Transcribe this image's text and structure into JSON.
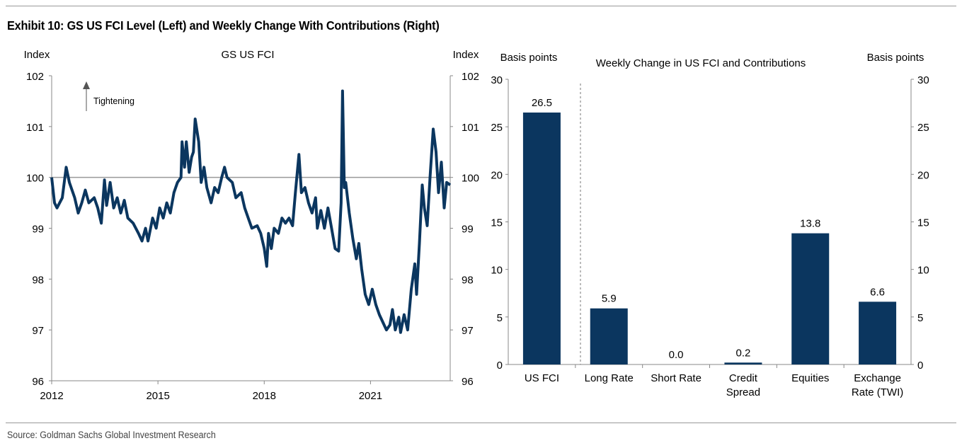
{
  "title": "Exhibit 10: GS US FCI Level (Left) and Weekly Change With Contributions (Right)",
  "source": "Source: Goldman Sachs Global Investment Research",
  "colors": {
    "series": "#0b365f",
    "axis": "#888888",
    "refline": "#999999"
  },
  "chart_data": [
    {
      "type": "line",
      "title": "GS US FCI",
      "ylabel_left": "Index",
      "ylabel_right": "Index",
      "annotation": "Tightening",
      "xlim": [
        2012,
        2023.25
      ],
      "ylim": [
        96,
        102
      ],
      "x_ticks": [
        "2012",
        "2015",
        "2018",
        "2021"
      ],
      "x_tick_values": [
        2012,
        2015,
        2018,
        2021
      ],
      "y_ticks": [
        96,
        97,
        98,
        99,
        100,
        101,
        102
      ],
      "y_tick_labels": [
        "96",
        "97",
        "98",
        "99",
        "100",
        "101",
        "102"
      ],
      "reference_line": 100,
      "series": [
        {
          "name": "GS US FCI",
          "x": [
            2012.0,
            2012.08,
            2012.15,
            2012.3,
            2012.41,
            2012.5,
            2012.65,
            2012.75,
            2012.85,
            2012.95,
            2013.05,
            2013.2,
            2013.3,
            2013.4,
            2013.49,
            2013.55,
            2013.65,
            2013.75,
            2013.85,
            2013.95,
            2014.05,
            2014.15,
            2014.3,
            2014.45,
            2014.55,
            2014.65,
            2014.72,
            2014.85,
            2014.95,
            2015.05,
            2015.15,
            2015.25,
            2015.35,
            2015.45,
            2015.55,
            2015.65,
            2015.68,
            2015.75,
            2015.8,
            2015.88,
            2015.95,
            2016.0,
            2016.05,
            2016.15,
            2016.22,
            2016.3,
            2016.38,
            2016.5,
            2016.6,
            2016.7,
            2016.8,
            2016.88,
            2016.95,
            2017.1,
            2017.2,
            2017.35,
            2017.45,
            2017.55,
            2017.65,
            2017.8,
            2017.9,
            2018.0,
            2018.07,
            2018.12,
            2018.2,
            2018.28,
            2018.4,
            2018.5,
            2018.6,
            2018.7,
            2018.8,
            2018.88,
            2018.98,
            2019.05,
            2019.15,
            2019.25,
            2019.35,
            2019.45,
            2019.5,
            2019.6,
            2019.7,
            2019.8,
            2019.9,
            2020.0,
            2020.1,
            2020.17,
            2020.21,
            2020.26,
            2020.3,
            2020.4,
            2020.5,
            2020.6,
            2020.67,
            2020.75,
            2020.85,
            2020.95,
            2021.05,
            2021.15,
            2021.25,
            2021.35,
            2021.45,
            2021.55,
            2021.62,
            2021.7,
            2021.8,
            2021.85,
            2021.95,
            2022.05,
            2022.15,
            2022.25,
            2022.3,
            2022.38,
            2022.46,
            2022.52,
            2022.6,
            2022.68,
            2022.77,
            2022.85,
            2022.92,
            2023.0,
            2023.08,
            2023.15,
            2023.25
          ],
          "y": [
            100.0,
            99.5,
            99.4,
            99.6,
            100.2,
            99.9,
            99.6,
            99.3,
            99.5,
            99.75,
            99.5,
            99.6,
            99.4,
            99.1,
            99.95,
            99.45,
            99.9,
            99.4,
            99.6,
            99.3,
            99.55,
            99.2,
            99.1,
            98.9,
            98.75,
            99.0,
            98.75,
            99.2,
            99.0,
            99.4,
            99.2,
            99.5,
            99.3,
            99.7,
            99.9,
            100.0,
            100.7,
            100.2,
            100.7,
            100.1,
            100.4,
            100.5,
            101.15,
            100.7,
            99.9,
            100.2,
            99.8,
            99.5,
            99.8,
            99.7,
            100.0,
            100.2,
            100.0,
            99.9,
            99.6,
            99.7,
            99.4,
            99.2,
            99.0,
            99.05,
            98.9,
            98.6,
            98.25,
            98.9,
            98.6,
            99.0,
            98.9,
            99.2,
            99.1,
            99.2,
            99.05,
            99.7,
            100.45,
            99.7,
            99.8,
            99.5,
            99.3,
            99.6,
            99.0,
            99.35,
            99.0,
            99.4,
            99.0,
            98.6,
            98.55,
            99.5,
            101.7,
            99.8,
            99.9,
            99.3,
            98.8,
            98.4,
            98.7,
            98.2,
            97.7,
            97.5,
            97.8,
            97.5,
            97.3,
            97.15,
            97.0,
            97.1,
            97.4,
            97.0,
            97.25,
            96.95,
            97.3,
            97.0,
            97.8,
            98.3,
            97.7,
            98.7,
            99.85,
            99.4,
            99.05,
            100.0,
            100.95,
            100.5,
            99.7,
            100.3,
            99.4,
            99.9,
            99.85
          ]
        }
      ]
    },
    {
      "type": "bar",
      "title": "Weekly Change in US FCI and Contributions",
      "ylabel_left": "Basis points",
      "ylabel_right": "Basis points",
      "categories": [
        [
          "US FCI"
        ],
        [
          "Long Rate"
        ],
        [
          "Short Rate"
        ],
        [
          "Credit",
          "Spread"
        ],
        [
          "Equities"
        ],
        [
          "Exchange",
          "Rate (TWI)"
        ]
      ],
      "values": [
        26.5,
        5.9,
        0.0,
        0.2,
        13.8,
        6.6
      ],
      "data_labels": [
        "26.5",
        "5.9",
        "0.0",
        "0.2",
        "13.8",
        "6.6"
      ],
      "ylim": [
        0,
        30
      ],
      "y_ticks": [
        0,
        5,
        10,
        15,
        20,
        25,
        30
      ],
      "y_tick_labels": [
        "0",
        "5",
        "10",
        "15",
        "20",
        "25",
        "30"
      ]
    }
  ]
}
